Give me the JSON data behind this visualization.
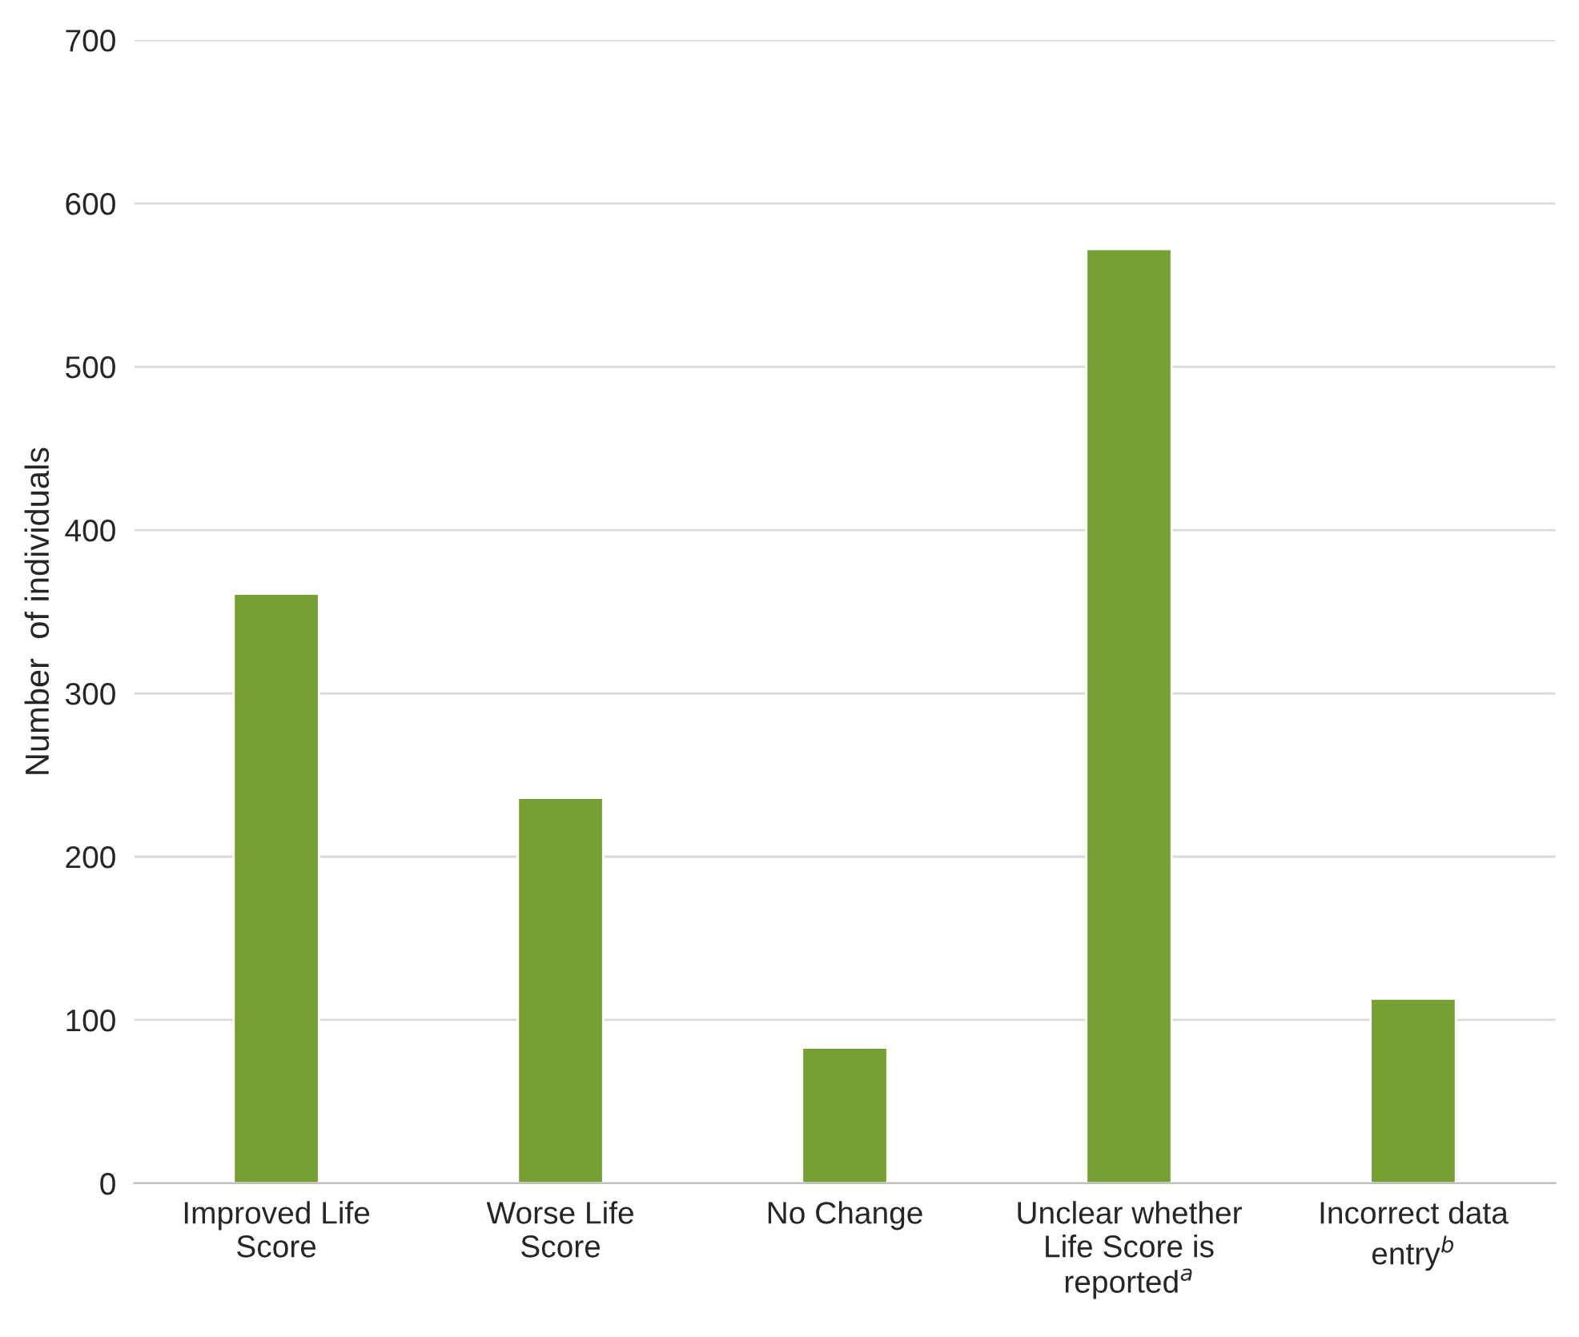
{
  "chart_data": {
    "type": "bar",
    "ylabel": "Number  of individuals",
    "categories": [
      "Improved Life\nScore",
      "Worse Life\nScore",
      "No Change",
      "Unclear whether\nLife Score is\nreported$^{a}$",
      "Incorrect data\nentry$^{b}$"
    ],
    "values": [
      361,
      236,
      83,
      572,
      113
    ],
    "color": "#77a033",
    "ylim": [
      0,
      700
    ],
    "yticks": [
      0,
      100,
      200,
      300,
      400,
      500,
      600,
      700
    ],
    "grid": "y"
  }
}
